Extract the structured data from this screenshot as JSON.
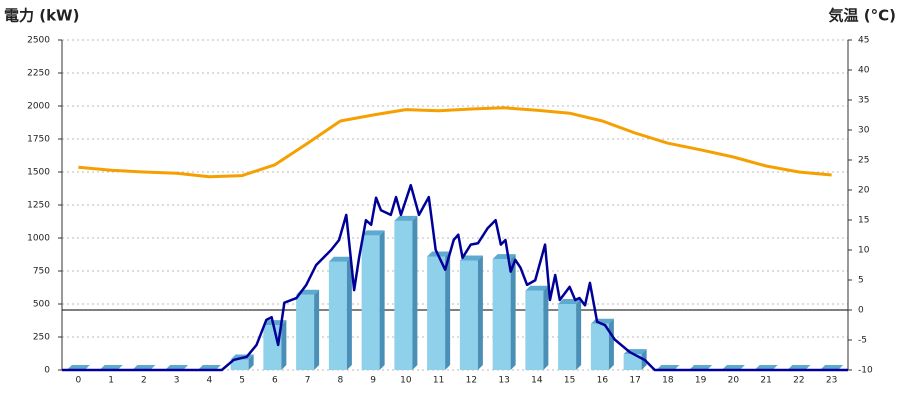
{
  "chart_data": {
    "type": "combo",
    "y_label": "電力 (kW)",
    "y2_label": "気温 (°C)",
    "y_label_color": "#1e6fb8",
    "y2_label_color": "#f08c1e",
    "categories": [
      "0",
      "1",
      "2",
      "3",
      "4",
      "5",
      "6",
      "7",
      "8",
      "9",
      "10",
      "11",
      "12",
      "13",
      "14",
      "15",
      "16",
      "17",
      "18",
      "19",
      "20",
      "21",
      "22",
      "23"
    ],
    "xlim": [
      -0.5,
      23.5
    ],
    "ylim": [
      0,
      2500
    ],
    "yticks": [
      0,
      250,
      500,
      750,
      1000,
      1250,
      1500,
      1750,
      2000,
      2250,
      2500
    ],
    "y2lim": [
      -10,
      45
    ],
    "y2ticks": [
      -10,
      -5,
      0,
      5,
      10,
      15,
      20,
      25,
      30,
      35,
      40,
      45
    ],
    "grid": true,
    "series": [
      {
        "type": "bar",
        "color": "#8fd0ea",
        "values": [
          0,
          0,
          0,
          0,
          0,
          80,
          340,
          570,
          820,
          1020,
          1130,
          860,
          830,
          840,
          600,
          500,
          350,
          120,
          0,
          0,
          0,
          0,
          0,
          0
        ]
      },
      {
        "type": "line",
        "color": "#000099",
        "x": [
          -0.5,
          4.38,
          4.74,
          5.14,
          5.44,
          5.74,
          5.9,
          6.1,
          6.29,
          6.66,
          6.96,
          7.26,
          7.72,
          7.96,
          8.18,
          8.42,
          8.57,
          8.78,
          8.94,
          9.09,
          9.24,
          9.54,
          9.7,
          9.85,
          10.15,
          10.4,
          10.7,
          10.91,
          11.2,
          11.46,
          11.6,
          11.73,
          11.98,
          12.2,
          12.5,
          12.74,
          12.9,
          13.04,
          13.2,
          13.34,
          13.5,
          13.7,
          13.95,
          14.25,
          14.4,
          14.56,
          14.7,
          15.0,
          15.17,
          15.3,
          15.47,
          15.62,
          15.84,
          16.08,
          16.38,
          16.84,
          17.3,
          17.6,
          23.5
        ],
        "values": [
          0,
          0,
          76,
          100,
          190,
          380,
          400,
          190,
          510,
          545,
          645,
          795,
          910,
          985,
          1175,
          605,
          850,
          1135,
          1100,
          1305,
          1210,
          1175,
          1310,
          1175,
          1400,
          1175,
          1310,
          910,
          760,
          985,
          1025,
          850,
          950,
          960,
          1075,
          1135,
          950,
          985,
          745,
          835,
          775,
          645,
          680,
          950,
          530,
          720,
          530,
          630,
          530,
          545,
          490,
          660,
          365,
          340,
          230,
          135,
          75,
          0,
          0
        ]
      },
      {
        "type": "line",
        "color": "#f5a000",
        "axis": "y2",
        "values": [
          23.8,
          23.3,
          23,
          22.8,
          22.2,
          22.4,
          24.2,
          27.8,
          31.5,
          32.5,
          33.4,
          33.2,
          33.5,
          33.7,
          33.3,
          32.8,
          31.5,
          29.5,
          27.8,
          26.7,
          25.5,
          24,
          23,
          22.5
        ]
      }
    ]
  }
}
